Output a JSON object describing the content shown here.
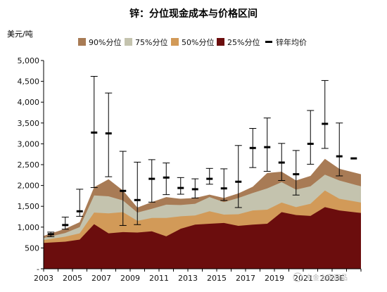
{
  "chart_data": {
    "type": "area",
    "title": "锌：分位现金成本与价格区间",
    "ylabel": "美元/吨",
    "xlabel": "",
    "ylim": [
      0,
      5000
    ],
    "yticks": [
      "5,000",
      "4,500",
      "4,000",
      "3,500",
      "3,000",
      "2,500",
      "2,000",
      "1,500",
      "1,000",
      "500",
      "-"
    ],
    "ytick_values": [
      5000,
      4500,
      4000,
      3500,
      3000,
      2500,
      2000,
      1500,
      1000,
      500,
      0
    ],
    "xtick_labels": [
      "2003",
      "2005",
      "2007",
      "2009",
      "2011",
      "2013",
      "2015",
      "2017",
      "2019",
      "2021",
      "2023E"
    ],
    "x": [
      "2003",
      "2004",
      "2005",
      "2006",
      "2007",
      "2008",
      "2009",
      "2010",
      "2011",
      "2012",
      "2013",
      "2014",
      "2015",
      "2016",
      "2017",
      "2018",
      "2019",
      "2020",
      "2021",
      "2022",
      "2023E",
      "2024E"
    ],
    "legend_placement": "top",
    "grid": false,
    "series": [
      {
        "name": "90%分位",
        "color": "#a87b55",
        "values": [
          790,
          960,
          1120,
          1960,
          2150,
          1880,
          1470,
          1600,
          1720,
          1680,
          1700,
          1780,
          1700,
          1810,
          1970,
          2300,
          2330,
          2120,
          2230,
          2640,
          2400,
          2270
        ]
      },
      {
        "name": "75%分位",
        "color": "#c4c3ae",
        "values": [
          740,
          860,
          1000,
          1760,
          1740,
          1640,
          1350,
          1440,
          1540,
          1530,
          1560,
          1720,
          1600,
          1700,
          1820,
          1930,
          2080,
          1900,
          1980,
          2260,
          2120,
          1980
        ]
      },
      {
        "name": "50%分位",
        "color": "#d29a58",
        "values": [
          690,
          770,
          850,
          1350,
          1330,
          1360,
          1150,
          1220,
          1220,
          1260,
          1280,
          1380,
          1300,
          1310,
          1400,
          1420,
          1590,
          1480,
          1560,
          1880,
          1680,
          1590
        ]
      },
      {
        "name": "25%分位",
        "color": "#6b0d0d",
        "values": [
          620,
          650,
          700,
          1070,
          850,
          880,
          870,
          900,
          780,
          960,
          1060,
          1080,
          1100,
          1030,
          1060,
          1080,
          1360,
          1290,
          1270,
          1480,
          1400,
          1340
        ]
      }
    ],
    "price_range": {
      "name": "锌年均价",
      "color": "#000000",
      "avg": [
        830,
        1050,
        1380,
        3270,
        3250,
        1870,
        1650,
        2160,
        2190,
        1940,
        1910,
        2160,
        1930,
        2090,
        2900,
        2920,
        2550,
        2270,
        3000,
        3480,
        2700,
        2650
      ],
      "high": [
        880,
        1240,
        1910,
        4620,
        4220,
        2820,
        2560,
        2620,
        2540,
        2190,
        2160,
        2410,
        2400,
        2960,
        3370,
        3620,
        3010,
        2840,
        3800,
        4520,
        3500,
        null
      ],
      "low": [
        770,
        950,
        1260,
        1950,
        2210,
        1040,
        1060,
        1600,
        1780,
        1790,
        1700,
        2030,
        1640,
        1470,
        2430,
        2340,
        2120,
        1770,
        2510,
        2890,
        2230,
        null
      ]
    }
  },
  "watermark": "中金大宗商品"
}
